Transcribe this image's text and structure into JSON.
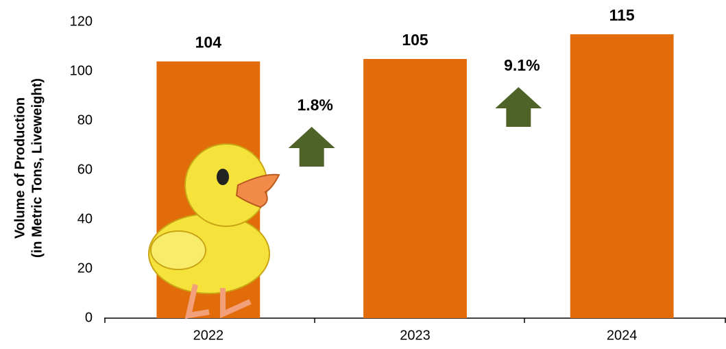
{
  "chart_data": {
    "type": "bar",
    "ylabel": [
      "Volume of Production",
      "(in Metric Tons, Liveweight)"
    ],
    "categories": [
      "2022",
      "2023",
      "2024"
    ],
    "values": [
      104,
      105,
      115
    ],
    "color": "#e36c0a",
    "ylim": [
      0,
      120
    ],
    "yticks": [
      0,
      20,
      40,
      60,
      80,
      100,
      120
    ],
    "grid": false,
    "annotations": [
      "1.8%",
      "9.1%"
    ],
    "annotation_color": "#4f6228"
  }
}
